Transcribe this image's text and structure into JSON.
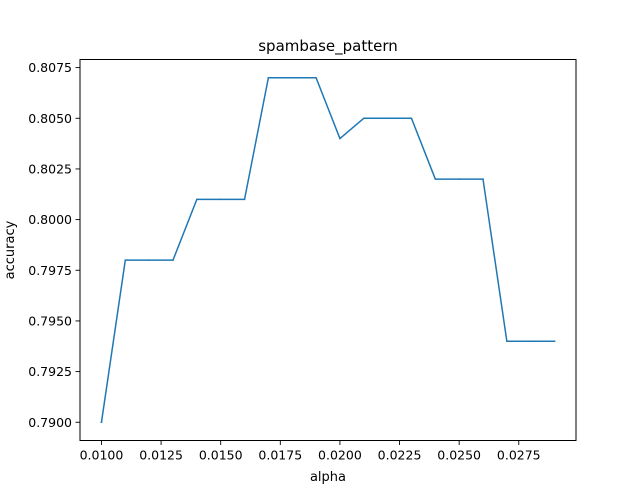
{
  "chart_data": {
    "type": "line",
    "title": "spambase_pattern",
    "xlabel": "alpha",
    "ylabel": "accuracy",
    "xlim": [
      0.0091,
      0.0299
    ],
    "ylim": [
      0.7891,
      0.8079
    ],
    "xticks": [
      0.01,
      0.0125,
      0.015,
      0.0175,
      0.02,
      0.0225,
      0.025,
      0.0275
    ],
    "xtick_labels": [
      "0.0100",
      "0.0125",
      "0.0150",
      "0.0175",
      "0.0200",
      "0.0225",
      "0.0250",
      "0.0275"
    ],
    "yticks": [
      0.79,
      0.7925,
      0.795,
      0.7975,
      0.8,
      0.8025,
      0.805,
      0.8075
    ],
    "ytick_labels": [
      "0.7900",
      "0.7925",
      "0.7950",
      "0.7975",
      "0.8000",
      "0.8025",
      "0.8050",
      "0.8075"
    ],
    "grid": false,
    "series": [
      {
        "color": "#1f77b4",
        "x": [
          0.01,
          0.011,
          0.012,
          0.013,
          0.014,
          0.015,
          0.016,
          0.017,
          0.018,
          0.019,
          0.02,
          0.021,
          0.022,
          0.023,
          0.024,
          0.025,
          0.026,
          0.027,
          0.028,
          0.029
        ],
        "y": [
          0.79,
          0.798,
          0.798,
          0.798,
          0.801,
          0.801,
          0.801,
          0.807,
          0.807,
          0.807,
          0.804,
          0.805,
          0.805,
          0.805,
          0.802,
          0.802,
          0.802,
          0.794,
          0.794,
          0.794
        ]
      }
    ]
  }
}
